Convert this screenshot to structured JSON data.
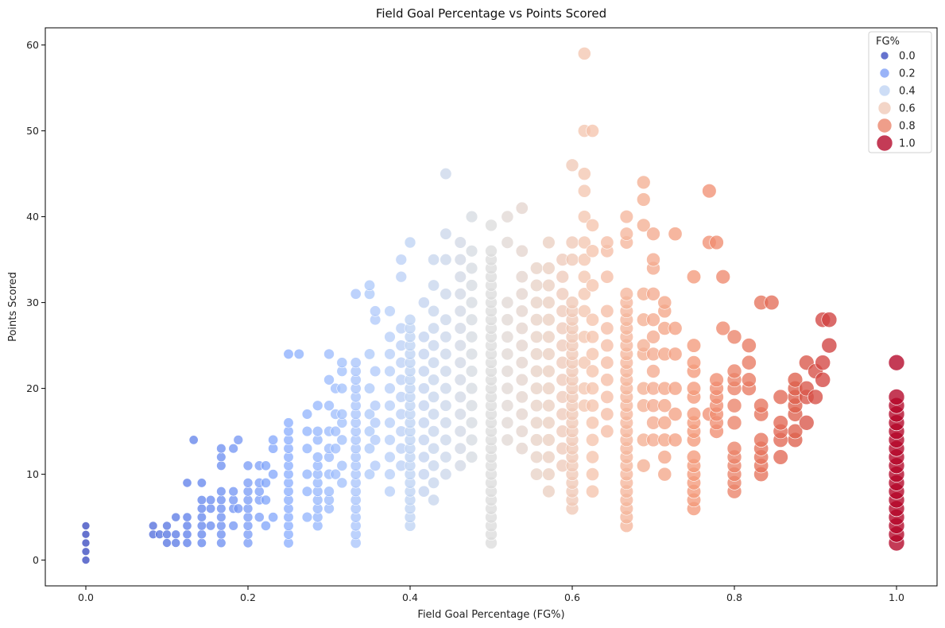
{
  "chart_data": {
    "type": "scatter",
    "title": "Field Goal Percentage vs Points Scored",
    "xlabel": "Field Goal Percentage (FG%)",
    "ylabel": "Points Scored",
    "xlim": [
      -0.05,
      1.05
    ],
    "ylim": [
      -3,
      62
    ],
    "xticks": [
      "0.0",
      "0.2",
      "0.4",
      "0.6",
      "0.8",
      "1.0"
    ],
    "xtick_values": [
      0,
      0.2,
      0.4,
      0.6,
      0.8,
      1.0
    ],
    "yticks": [
      "0",
      "10",
      "20",
      "30",
      "40",
      "50",
      "60"
    ],
    "ytick_values": [
      0,
      10,
      20,
      30,
      40,
      50,
      60
    ],
    "grid": false,
    "colormap": "coolwarm",
    "hue_and_size": "FG%",
    "legend": {
      "title": "FG%",
      "position": "top-right",
      "entries": [
        "0.0",
        "0.2",
        "0.4",
        "0.6",
        "0.8",
        "1.0"
      ],
      "entry_values": [
        0,
        0.2,
        0.4,
        0.6,
        0.8,
        1.0
      ]
    },
    "point_columns": [
      {
        "x": 0.0,
        "y": [
          0,
          1,
          2,
          3,
          4
        ]
      },
      {
        "x": 0.083,
        "y": [
          3,
          4
        ]
      },
      {
        "x": 0.091,
        "y": [
          3
        ]
      },
      {
        "x": 0.1,
        "y": [
          2,
          3,
          4
        ]
      },
      {
        "x": 0.111,
        "y": [
          2,
          3,
          5
        ]
      },
      {
        "x": 0.125,
        "y": [
          2,
          3,
          4,
          5,
          9
        ]
      },
      {
        "x": 0.133,
        "y": [
          14
        ]
      },
      {
        "x": 0.143,
        "y": [
          2,
          3,
          4,
          5,
          6,
          7,
          9
        ]
      },
      {
        "x": 0.154,
        "y": [
          4,
          6,
          7
        ]
      },
      {
        "x": 0.167,
        "y": [
          2,
          3,
          4,
          5,
          6,
          7,
          8,
          11,
          12,
          13
        ]
      },
      {
        "x": 0.182,
        "y": [
          4,
          6,
          7,
          8,
          13
        ]
      },
      {
        "x": 0.188,
        "y": [
          6,
          14
        ]
      },
      {
        "x": 0.2,
        "y": [
          2,
          3,
          4,
          5,
          6,
          7,
          8,
          9,
          11
        ]
      },
      {
        "x": 0.214,
        "y": [
          5,
          7,
          8,
          9,
          11
        ]
      },
      {
        "x": 0.222,
        "y": [
          4,
          7,
          9,
          11
        ]
      },
      {
        "x": 0.231,
        "y": [
          5,
          10,
          13,
          14
        ]
      },
      {
        "x": 0.25,
        "y": [
          2,
          3,
          4,
          5,
          6,
          7,
          8,
          9,
          10,
          11,
          12,
          13,
          14,
          15,
          16,
          24
        ]
      },
      {
        "x": 0.263,
        "y": [
          24
        ]
      },
      {
        "x": 0.273,
        "y": [
          5,
          8,
          10,
          13,
          15,
          17
        ]
      },
      {
        "x": 0.286,
        "y": [
          4,
          5,
          6,
          7,
          8,
          9,
          10,
          11,
          12,
          14,
          15,
          18
        ]
      },
      {
        "x": 0.3,
        "y": [
          6,
          7,
          8,
          10,
          12,
          13,
          15,
          18,
          21,
          24
        ]
      },
      {
        "x": 0.308,
        "y": [
          10,
          13,
          15,
          17,
          20
        ]
      },
      {
        "x": 0.316,
        "y": [
          9,
          11,
          14,
          16,
          17,
          20,
          22,
          23
        ]
      },
      {
        "x": 0.333,
        "y": [
          2,
          3,
          4,
          5,
          6,
          7,
          8,
          9,
          10,
          11,
          12,
          13,
          14,
          15,
          16,
          17,
          18,
          19,
          20,
          21,
          22,
          23,
          31
        ]
      },
      {
        "x": 0.35,
        "y": [
          10,
          13,
          15,
          17,
          20,
          24,
          31,
          32
        ]
      },
      {
        "x": 0.357,
        "y": [
          11,
          14,
          16,
          18,
          22,
          28,
          29
        ]
      },
      {
        "x": 0.375,
        "y": [
          8,
          10,
          12,
          14,
          16,
          18,
          20,
          22,
          24,
          26,
          29
        ]
      },
      {
        "x": 0.389,
        "y": [
          11,
          13,
          15,
          17,
          19,
          21,
          23,
          25,
          27,
          33,
          35
        ]
      },
      {
        "x": 0.4,
        "y": [
          4,
          5,
          6,
          7,
          8,
          9,
          10,
          11,
          12,
          13,
          14,
          15,
          16,
          17,
          18,
          19,
          20,
          21,
          22,
          23,
          24,
          25,
          26,
          27,
          28,
          37
        ]
      },
      {
        "x": 0.417,
        "y": [
          8,
          10,
          12,
          14,
          16,
          18,
          20,
          22,
          24,
          26,
          30
        ]
      },
      {
        "x": 0.429,
        "y": [
          7,
          9,
          11,
          13,
          15,
          17,
          19,
          21,
          23,
          25,
          27,
          29,
          32,
          35
        ]
      },
      {
        "x": 0.444,
        "y": [
          10,
          12,
          14,
          16,
          18,
          20,
          22,
          24,
          26,
          28,
          31,
          35,
          38,
          45
        ]
      },
      {
        "x": 0.462,
        "y": [
          11,
          13,
          15,
          17,
          19,
          21,
          23,
          25,
          27,
          29,
          31,
          33,
          35,
          37
        ]
      },
      {
        "x": 0.476,
        "y": [
          12,
          14,
          16,
          18,
          20,
          22,
          24,
          26,
          28,
          30,
          32,
          34,
          36,
          40
        ]
      },
      {
        "x": 0.5,
        "y": [
          2,
          3,
          4,
          5,
          6,
          7,
          8,
          9,
          10,
          11,
          12,
          13,
          14,
          15,
          16,
          17,
          18,
          19,
          20,
          21,
          22,
          23,
          24,
          25,
          26,
          27,
          28,
          29,
          30,
          31,
          32,
          33,
          34,
          35,
          36,
          39
        ]
      },
      {
        "x": 0.52,
        "y": [
          14,
          16,
          18,
          20,
          22,
          24,
          26,
          28,
          30,
          37,
          40
        ]
      },
      {
        "x": 0.538,
        "y": [
          13,
          15,
          17,
          19,
          21,
          23,
          25,
          27,
          29,
          31,
          33,
          36,
          41
        ]
      },
      {
        "x": 0.556,
        "y": [
          10,
          12,
          14,
          16,
          18,
          20,
          22,
          24,
          26,
          28,
          30,
          32,
          34
        ]
      },
      {
        "x": 0.571,
        "y": [
          8,
          10,
          12,
          14,
          16,
          18,
          20,
          22,
          24,
          26,
          28,
          30,
          32,
          34,
          37
        ]
      },
      {
        "x": 0.588,
        "y": [
          11,
          13,
          15,
          17,
          19,
          21,
          23,
          25,
          27,
          29,
          31,
          33,
          35
        ]
      },
      {
        "x": 0.6,
        "y": [
          6,
          7,
          8,
          9,
          10,
          11,
          12,
          13,
          14,
          15,
          16,
          17,
          18,
          19,
          20,
          21,
          22,
          23,
          24,
          25,
          26,
          27,
          28,
          29,
          30,
          35,
          37,
          46
        ]
      },
      {
        "x": 0.615,
        "y": [
          18,
          20,
          23,
          26,
          29,
          31,
          33,
          35,
          37,
          40,
          43,
          45,
          50,
          59
        ]
      },
      {
        "x": 0.625,
        "y": [
          8,
          10,
          12,
          14,
          16,
          18,
          20,
          22,
          24,
          26,
          28,
          32,
          36,
          39,
          50
        ]
      },
      {
        "x": 0.643,
        "y": [
          15,
          17,
          19,
          21,
          23,
          25,
          27,
          29,
          33,
          36,
          37
        ]
      },
      {
        "x": 0.667,
        "y": [
          4,
          5,
          6,
          7,
          8,
          9,
          10,
          11,
          12,
          13,
          14,
          15,
          16,
          17,
          18,
          19,
          20,
          21,
          22,
          23,
          24,
          25,
          26,
          27,
          28,
          29,
          30,
          31,
          37,
          38,
          40
        ]
      },
      {
        "x": 0.688,
        "y": [
          11,
          14,
          18,
          20,
          24,
          25,
          28,
          31,
          39,
          42,
          44
        ]
      },
      {
        "x": 0.7,
        "y": [
          14,
          16,
          18,
          20,
          22,
          24,
          26,
          28,
          31,
          34,
          35,
          38
        ]
      },
      {
        "x": 0.714,
        "y": [
          10,
          12,
          14,
          16,
          18,
          20,
          24,
          27,
          29,
          30
        ]
      },
      {
        "x": 0.727,
        "y": [
          14,
          17,
          20,
          24,
          27,
          38
        ]
      },
      {
        "x": 0.75,
        "y": [
          6,
          7,
          8,
          9,
          10,
          11,
          12,
          14,
          15,
          16,
          17,
          19,
          20,
          22,
          23,
          25,
          33
        ]
      },
      {
        "x": 0.769,
        "y": [
          17,
          37,
          43
        ]
      },
      {
        "x": 0.778,
        "y": [
          15,
          16,
          17,
          18,
          19,
          20,
          21,
          37
        ]
      },
      {
        "x": 0.786,
        "y": [
          27,
          33
        ]
      },
      {
        "x": 0.8,
        "y": [
          8,
          9,
          10,
          11,
          12,
          13,
          16,
          18,
          20,
          21,
          22,
          26
        ]
      },
      {
        "x": 0.818,
        "y": [
          20,
          21,
          23,
          25
        ]
      },
      {
        "x": 0.833,
        "y": [
          10,
          11,
          12,
          13,
          14,
          17,
          18,
          30
        ]
      },
      {
        "x": 0.846,
        "y": [
          30
        ]
      },
      {
        "x": 0.857,
        "y": [
          12,
          14,
          15,
          16,
          19
        ]
      },
      {
        "x": 0.875,
        "y": [
          14,
          15,
          17,
          18,
          19,
          20,
          21
        ]
      },
      {
        "x": 0.889,
        "y": [
          16,
          19,
          20,
          23
        ]
      },
      {
        "x": 0.9,
        "y": [
          19,
          22
        ]
      },
      {
        "x": 0.909,
        "y": [
          21,
          23,
          28
        ]
      },
      {
        "x": 0.917,
        "y": [
          25,
          28
        ]
      },
      {
        "x": 1.0,
        "y": [
          2,
          3,
          4,
          5,
          6,
          7,
          8,
          9,
          10,
          11,
          12,
          13,
          14,
          15,
          16,
          17,
          18,
          19,
          23
        ]
      }
    ]
  }
}
